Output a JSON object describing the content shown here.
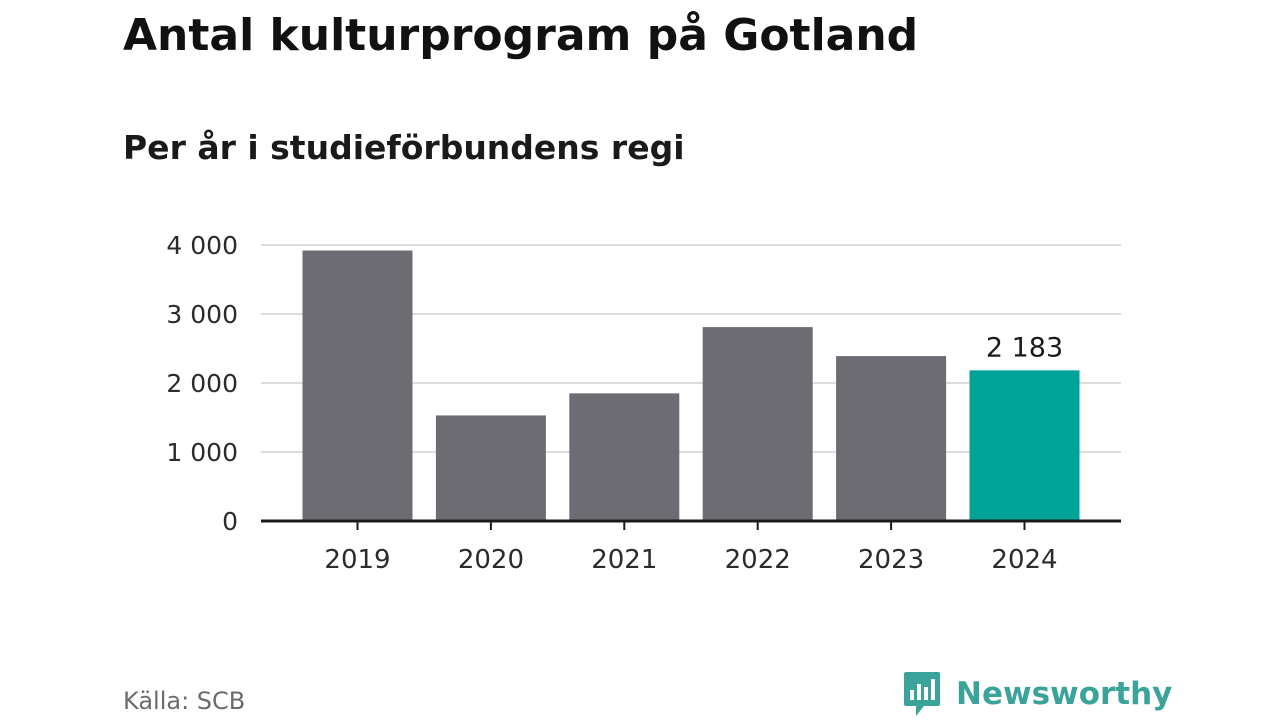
{
  "header": {
    "title": "Antal kulturprogram på Gotland",
    "subtitle": "Per år i studieförbundens regi"
  },
  "footer": {
    "source": "Källa: SCB",
    "brand_name": "Newsworthy",
    "brand_icon": "newsworthy-logo-icon"
  },
  "colors": {
    "bar_default": "#6d6c73",
    "bar_highlight": "#00a398",
    "gridline": "#dddddd",
    "baseline": "#1a1a1a",
    "brand": "#3aa39a"
  },
  "chart_data": {
    "type": "bar",
    "categories": [
      "2019",
      "2020",
      "2021",
      "2022",
      "2023",
      "2024"
    ],
    "values": [
      3920,
      1530,
      1850,
      2810,
      2390,
      2183
    ],
    "highlight_category": "2024",
    "data_labels": [
      {
        "category": "2024",
        "text": "2 183"
      }
    ],
    "yticks": [
      0,
      1000,
      2000,
      3000,
      4000
    ],
    "ytick_labels": [
      "0",
      "1 000",
      "2 000",
      "3 000",
      "4 000"
    ],
    "ylim": [
      0,
      4000
    ],
    "grid": true,
    "legend": false
  }
}
